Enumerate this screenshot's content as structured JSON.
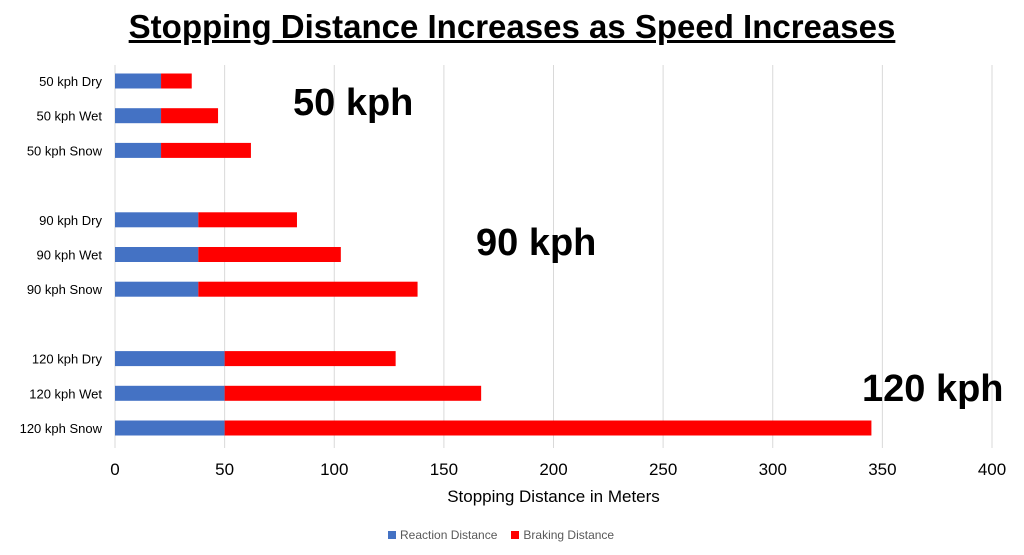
{
  "chart_data": {
    "type": "bar",
    "orientation": "horizontal",
    "stacked": true,
    "title": "Stopping Distance Increases as Speed Increases",
    "xlabel": "Stopping Distance in Meters",
    "ylabel": "",
    "xlim": [
      0,
      400
    ],
    "xticks": [
      "0",
      "50",
      "100",
      "150",
      "200",
      "250",
      "300",
      "350",
      "400"
    ],
    "grid": true,
    "legend_position": "bottom",
    "categories": [
      "50 kph Dry",
      "50 kph Wet",
      "50 kph Snow",
      "90 kph Dry",
      "90 kph Wet",
      "90 kph Snow",
      "120 kph Dry",
      "120 kph Wet",
      "120 kph Snow"
    ],
    "series": [
      {
        "name": "Reaction Distance",
        "color": "#4472C4",
        "values": [
          21,
          21,
          21,
          38,
          38,
          38,
          50,
          50,
          50
        ]
      },
      {
        "name": "Braking Distance",
        "color": "#FF0000",
        "values": [
          14,
          26,
          41,
          45,
          65,
          100,
          78,
          117,
          295
        ]
      }
    ],
    "annotations": [
      "50 kph",
      "90 kph",
      "120 kph"
    ]
  }
}
